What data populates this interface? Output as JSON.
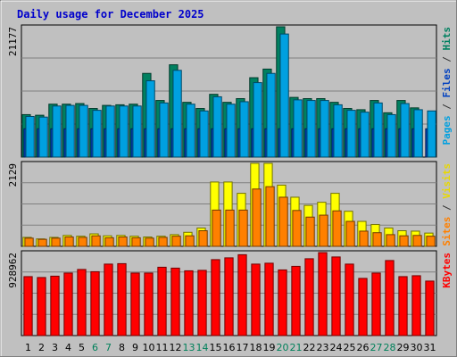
{
  "chart_data": {
    "title": "Daily usage for December 2025",
    "days": [
      "1",
      "2",
      "3",
      "4",
      "5",
      "6",
      "7",
      "8",
      "9",
      "10",
      "11",
      "12",
      "13",
      "14",
      "15",
      "16",
      "17",
      "18",
      "19",
      "20",
      "21",
      "22",
      "23",
      "24",
      "25",
      "26",
      "27",
      "28",
      "29",
      "30",
      "31"
    ],
    "weekend_days": [
      "6",
      "7",
      "13",
      "14",
      "20",
      "21",
      "27",
      "28"
    ],
    "panels": [
      {
        "type": "bar",
        "max_label": "21177",
        "ylim": [
          0,
          21177
        ],
        "side_label": [
          {
            "text": "Pages",
            "color": "#00a0e0"
          },
          {
            "text": " / ",
            "color": "#333333"
          },
          {
            "text": "Files",
            "color": "#0040c0"
          },
          {
            "text": " / ",
            "color": "#333333"
          },
          {
            "text": "Hits",
            "color": "#008060"
          }
        ],
        "series": [
          {
            "name": "Hits",
            "color": "#008060",
            "values": [
              6900,
              6800,
              8600,
              8600,
              8700,
              7900,
              8400,
              8500,
              8600,
              13600,
              9200,
              15000,
              8900,
              7900,
              10200,
              8900,
              9500,
              12900,
              14300,
              21177,
              9700,
              9500,
              9500,
              8900,
              7900,
              7700,
              9200,
              7200,
              9200,
              8000,
              0
            ]
          },
          {
            "name": "Files",
            "color": "#0040c0",
            "values": [
              4600,
              4600,
              4600,
              4600,
              4600,
              4600,
              4600,
              4600,
              4600,
              4600,
              4600,
              4600,
              4600,
              4600,
              4600,
              4600,
              4600,
              4600,
              4600,
              4600,
              4600,
              4600,
              4600,
              4600,
              4600,
              4600,
              4600,
              4600,
              4600,
              4600,
              4600
            ]
          },
          {
            "name": "Pages",
            "color": "#00a0e0",
            "values": [
              6600,
              6500,
              8300,
              8400,
              8400,
              7600,
              8300,
              8300,
              8300,
              12400,
              8800,
              14100,
              8600,
              7500,
              9800,
              8600,
              9000,
              12100,
              13600,
              20000,
              9300,
              9200,
              9200,
              8500,
              7600,
              7300,
              8800,
              6900,
              8700,
              7700,
              7500
            ]
          }
        ]
      },
      {
        "type": "bar",
        "max_label": "2129",
        "ylim": [
          0,
          2129
        ],
        "side_label": [
          {
            "text": "Sites",
            "color": "#ff8000"
          },
          {
            "text": " / ",
            "color": "#333333"
          },
          {
            "text": "Visits",
            "color": "#e8d800"
          }
        ],
        "series": [
          {
            "name": "Visits",
            "color": "#ffff00",
            "values": [
              230,
              190,
              230,
              280,
              260,
              320,
              270,
              280,
              260,
              240,
              260,
              300,
              360,
              470,
              1650,
              1650,
              1360,
              2129,
              2129,
              1570,
              1260,
              1050,
              1130,
              1360,
              900,
              640,
              560,
              470,
              400,
              390,
              340
            ]
          },
          {
            "name": "Sites",
            "color": "#ff8000",
            "values": [
              210,
              180,
              210,
              240,
              230,
              270,
              220,
              240,
              220,
              210,
              230,
              260,
              270,
              400,
              930,
              930,
              930,
              1470,
              1530,
              1260,
              920,
              750,
              800,
              910,
              640,
              390,
              350,
              300,
              270,
              280,
              260
            ]
          }
        ]
      },
      {
        "type": "bar",
        "max_label": "928962",
        "ylim": [
          0,
          928962
        ],
        "side_label": [
          {
            "text": "KBytes",
            "color": "#ff0000"
          }
        ],
        "series": [
          {
            "name": "KBytes",
            "color": "#ff0000",
            "values": [
              660000,
              650000,
              665000,
              700000,
              740000,
              715000,
              800000,
              805000,
              700000,
              700000,
              765000,
              755000,
              725000,
              730000,
              850000,
              870000,
              905000,
              800000,
              810000,
              735000,
              775000,
              860000,
              928962,
              880000,
              800000,
              640000,
              700000,
              840000,
              660000,
              670000,
              610000
            ]
          }
        ]
      }
    ]
  }
}
